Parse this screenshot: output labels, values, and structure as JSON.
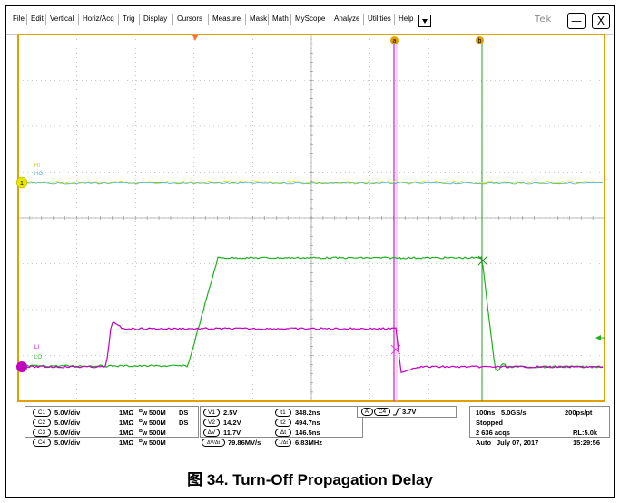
{
  "menu": {
    "items": [
      "File",
      "Edit",
      "Vertical",
      "Horiz/Acq",
      "Trig",
      "Display",
      "Cursors",
      "Measure",
      "Mask",
      "Math",
      "MyScope",
      "Analyze",
      "Utilities",
      "Help"
    ],
    "brand": "Tek",
    "minimize_label": "—",
    "close_label": "X"
  },
  "cursor_labels": {
    "a": "a",
    "b": "b"
  },
  "channel_labels": {
    "ch1_marker": "1",
    "ch1_hi": "HI",
    "ch1_ho": "HO",
    "ch3_li": "LI",
    "ch3_lo": "LO"
  },
  "channels": [
    {
      "id": "C1",
      "volts": "5.0V/div",
      "imp": "1MΩ",
      "bw": "500M",
      "ds": "DS"
    },
    {
      "id": "C2",
      "volts": "5.0V/div",
      "imp": "1MΩ",
      "bw": "500M",
      "ds": "DS"
    },
    {
      "id": "C3",
      "volts": "5.0V/div",
      "imp": "1MΩ",
      "bw": "500M",
      "ds": ""
    },
    {
      "id": "C4",
      "volts": "5.0V/div",
      "imp": "1MΩ",
      "bw": "500M",
      "ds": ""
    }
  ],
  "bw_prefix": "B",
  "bw_sub": "W",
  "voltage_cursors": [
    {
      "label": "V1",
      "value": "2.5V"
    },
    {
      "label": "V2",
      "value": "14.2V"
    },
    {
      "label": "ΔV",
      "value": "11.7V"
    },
    {
      "label": "ΔV/Δt",
      "value": "79.86MV/s"
    }
  ],
  "time_cursors": [
    {
      "label": "t1",
      "value": "348.2ns"
    },
    {
      "label": "t2",
      "value": "494.7ns"
    },
    {
      "label": "Δt",
      "value": "146.5ns"
    },
    {
      "label": "1/Δt",
      "value": "6.83MHz"
    }
  ],
  "trigger": {
    "mode": "A'",
    "source": "C4",
    "level": "3.7V"
  },
  "acquisition": {
    "timebase": "100ns",
    "sample_rate": "5.0GS/s",
    "resolution": "200ps/pt",
    "state": "Stopped",
    "acqs": "2 636 acqs",
    "record_length": "RL:5.0k",
    "trigger_mode": "Auto",
    "date": "July 07, 2017",
    "time": "15:29:56"
  },
  "caption": "图 34. Turn-Off Propagation Delay",
  "colors": {
    "graticule_border": "#e0a000",
    "grid": "#9a9a9a",
    "ch1": "#e6e600",
    "ch2": "#3fb0e0",
    "ch3": "#c000c0",
    "ch4": "#20b020",
    "cursor_a": "#e040e0",
    "cursor_b": "#20a020",
    "trigger_marker": "#ff7040"
  }
}
